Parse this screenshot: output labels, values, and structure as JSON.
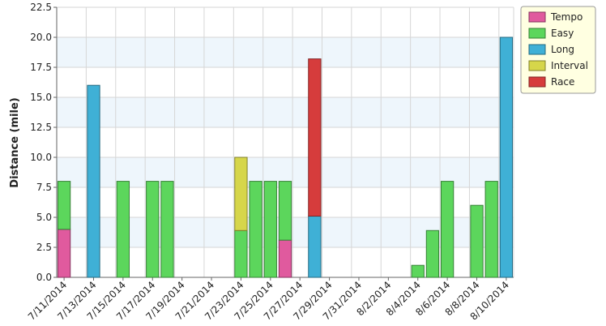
{
  "chart_data": {
    "type": "stacked_bar",
    "y_label": "Distance (mile)",
    "categories": [
      "7/11/2014",
      null,
      "7/13/2014",
      null,
      "7/15/2014",
      null,
      "7/17/2014",
      null,
      "7/19/2014",
      null,
      "7/21/2014",
      null,
      "7/23/2014",
      null,
      "7/25/2014",
      null,
      "7/27/2014",
      null,
      "7/29/2014",
      null,
      "7/31/2014",
      null,
      "8/2/2014",
      null,
      "8/4/2014",
      null,
      "8/6/2014",
      null,
      "8/8/2014",
      null,
      "8/10/2014"
    ],
    "series": [
      {
        "name": "Tempo",
        "color": "#e05a9e",
        "values": [
          4,
          null,
          null,
          null,
          null,
          null,
          null,
          null,
          null,
          null,
          null,
          null,
          null,
          null,
          null,
          3.1,
          null,
          null,
          null,
          null,
          null,
          null,
          null,
          null,
          null,
          null,
          null,
          null,
          null,
          null,
          null
        ]
      },
      {
        "name": "Easy",
        "color": "#5cd65c",
        "values": [
          4,
          null,
          null,
          null,
          8,
          null,
          8,
          8,
          null,
          null,
          null,
          null,
          3.9,
          8,
          8,
          4.9,
          null,
          null,
          null,
          null,
          null,
          null,
          null,
          null,
          1,
          3.9,
          8,
          null,
          6,
          8,
          null
        ]
      },
      {
        "name": "Long",
        "color": "#3fb0d6",
        "values": [
          null,
          null,
          16,
          null,
          null,
          null,
          null,
          null,
          null,
          null,
          null,
          null,
          null,
          null,
          null,
          null,
          null,
          5.1,
          null,
          null,
          null,
          null,
          null,
          null,
          null,
          null,
          null,
          null,
          null,
          null,
          20
        ]
      },
      {
        "name": "Interval",
        "color": "#d6d64a",
        "values": [
          null,
          null,
          null,
          null,
          null,
          null,
          null,
          null,
          null,
          null,
          null,
          null,
          6.1,
          null,
          null,
          null,
          null,
          null,
          null,
          null,
          null,
          null,
          null,
          null,
          null,
          null,
          null,
          null,
          null,
          null,
          null
        ]
      },
      {
        "name": "Race",
        "color": "#d63c3c",
        "values": [
          null,
          null,
          null,
          null,
          null,
          null,
          null,
          null,
          null,
          null,
          null,
          null,
          null,
          null,
          null,
          null,
          null,
          13.1,
          null,
          null,
          null,
          null,
          null,
          null,
          null,
          null,
          null,
          null,
          null,
          null,
          null
        ]
      }
    ],
    "ylim": [
      0,
      22.5
    ],
    "yticks": [
      {
        "value": 0,
        "label": "0.0"
      },
      2.5,
      {
        "value": 5,
        "label": "5.0"
      },
      7.5,
      {
        "value": 10,
        "label": "10.0"
      },
      12.5,
      {
        "value": 15,
        "label": "15.0"
      },
      17.5,
      {
        "value": 20,
        "label": "20.0"
      },
      22.5
    ],
    "grid": true,
    "legend": "top-right"
  }
}
